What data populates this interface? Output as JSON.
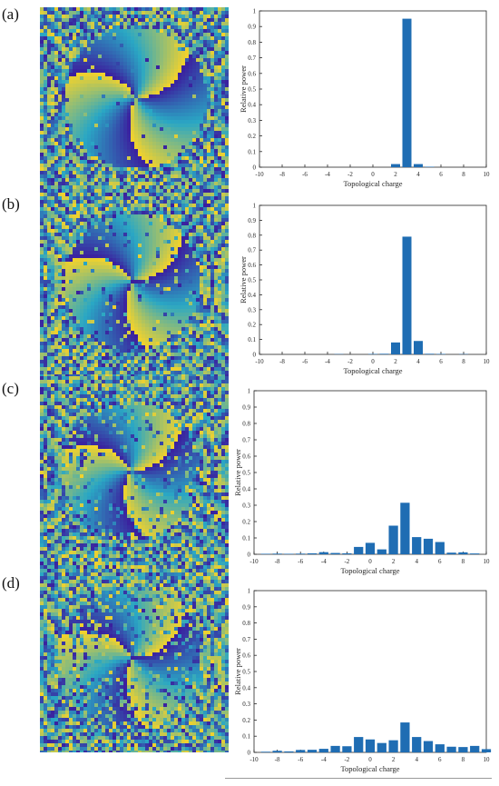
{
  "panels": [
    {
      "label": "(a)"
    },
    {
      "label": "(b)"
    },
    {
      "label": "(c)"
    },
    {
      "label": "(d)"
    }
  ],
  "colors": {
    "bar": "#1f6db3",
    "phase_low": "#3b1e9e",
    "phase_mid": "#2aa7c4",
    "phase_high": "#f2d22c"
  },
  "chart_data": [
    {
      "type": "bar",
      "panel": "(a)",
      "title": "",
      "xlabel": "Topological charge",
      "ylabel": "Relative power",
      "xlim": [
        -10,
        10
      ],
      "ylim": [
        0,
        1
      ],
      "xticks": [
        "-10",
        "-8",
        "-6",
        "-4",
        "-2",
        "0",
        "2",
        "4",
        "6",
        "8",
        "10"
      ],
      "yticks": [
        "0",
        "0.1",
        "0.2",
        "0.3",
        "0.4",
        "0.5",
        "0.6",
        "0.7",
        "0.8",
        "0.9",
        "1"
      ],
      "x": [
        -9,
        -8,
        -7,
        -6,
        -5,
        -4,
        -3,
        -2,
        -1,
        0,
        1,
        2,
        3,
        4,
        5,
        6,
        7,
        8,
        9
      ],
      "values": [
        0,
        0,
        0,
        0,
        0,
        0,
        0,
        0,
        0,
        0,
        0,
        0.02,
        0.95,
        0.02,
        0.003,
        0,
        0,
        0,
        0
      ]
    },
    {
      "type": "bar",
      "panel": "(b)",
      "title": "",
      "xlabel": "Topological charge",
      "ylabel": "Relative power",
      "xlim": [
        -10,
        10
      ],
      "ylim": [
        0,
        1
      ],
      "xticks": [
        "-10",
        "-8",
        "-6",
        "-4",
        "-2",
        "0",
        "2",
        "4",
        "6",
        "8",
        "10"
      ],
      "yticks": [
        "0",
        "0.1",
        "0.2",
        "0.3",
        "0.4",
        "0.5",
        "0.6",
        "0.7",
        "0.8",
        "0.9",
        "1"
      ],
      "x": [
        -9,
        -8,
        -7,
        -6,
        -5,
        -4,
        -3,
        -2,
        -1,
        0,
        1,
        2,
        3,
        4,
        5,
        6,
        7,
        8,
        9
      ],
      "values": [
        0,
        0,
        0,
        0,
        0,
        0,
        0.002,
        0,
        0,
        0.003,
        0.004,
        0.08,
        0.79,
        0.09,
        0.004,
        0.003,
        0,
        0.002,
        0
      ]
    },
    {
      "type": "bar",
      "panel": "(c)",
      "title": "",
      "xlabel": "Topological charge",
      "ylabel": "Relative power",
      "xlim": [
        -10,
        10
      ],
      "ylim": [
        0,
        1
      ],
      "xticks": [
        "-10",
        "-8",
        "-6",
        "-4",
        "-2",
        "0",
        "2",
        "4",
        "6",
        "8",
        "10"
      ],
      "yticks": [
        "0",
        "0.1",
        "0.2",
        "0.3",
        "0.4",
        "0.5",
        "0.6",
        "0.7",
        "0.8",
        "0.9",
        "1"
      ],
      "x": [
        -9,
        -8,
        -7,
        -6,
        -5,
        -4,
        -3,
        -2,
        -1,
        0,
        1,
        2,
        3,
        4,
        5,
        6,
        7,
        8,
        9
      ],
      "values": [
        0.003,
        0.004,
        0.003,
        0.004,
        0.006,
        0.013,
        0.008,
        0.006,
        0.045,
        0.07,
        0.03,
        0.175,
        0.315,
        0.105,
        0.095,
        0.075,
        0.01,
        0.012,
        0.005
      ]
    },
    {
      "type": "bar",
      "panel": "(d)",
      "title": "",
      "xlabel": "Topological charge",
      "ylabel": "Relative power",
      "xlim": [
        -10,
        10
      ],
      "ylim": [
        0,
        1
      ],
      "xticks": [
        "-10",
        "-8",
        "-6",
        "-4",
        "-2",
        "0",
        "2",
        "4",
        "6",
        "8",
        "10"
      ],
      "yticks": [
        "0",
        "0.1",
        "0.2",
        "0.3",
        "0.4",
        "0.5",
        "0.6",
        "0.7",
        "0.8",
        "0.9",
        "1"
      ],
      "x": [
        -9,
        -8,
        -7,
        -6,
        -5,
        -4,
        -3,
        -2,
        -1,
        0,
        1,
        2,
        3,
        4,
        5,
        6,
        7,
        8,
        9,
        10
      ],
      "values": [
        0.004,
        0.01,
        0.006,
        0.015,
        0.016,
        0.022,
        0.04,
        0.038,
        0.095,
        0.08,
        0.058,
        0.075,
        0.185,
        0.095,
        0.07,
        0.05,
        0.035,
        0.033,
        0.04,
        0.02
      ]
    }
  ]
}
